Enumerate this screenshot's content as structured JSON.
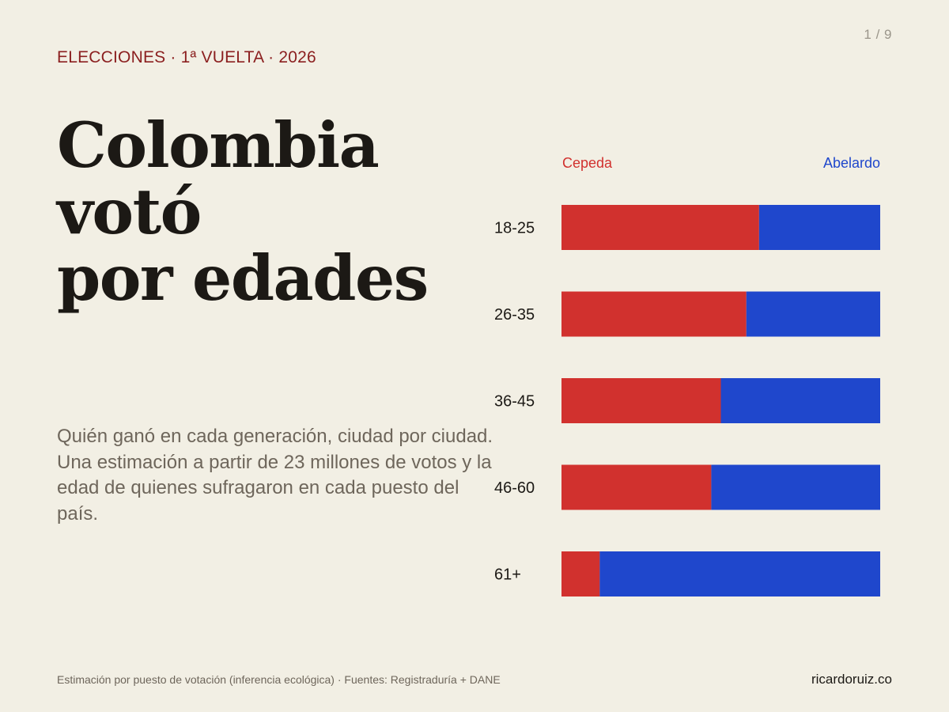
{
  "page": {
    "counter": "1 / 9",
    "kicker": "ELECCIONES · 1ª VUELTA · 2026",
    "headline_line1": "Colombia votó",
    "headline_line2": "por edades",
    "subtitle": "Quién ganó en cada generación, ciudad por ciudad. Una estimación a partir de 23 millones de votos y la edad de quienes sufragaron en cada puesto del país.",
    "footer_source": "Estimación por puesto de votación (inferencia ecológica) · Fuentes: Registraduría + DANE",
    "footer_site": "ricardoruiz.co"
  },
  "chart_data": {
    "type": "bar",
    "stacked": true,
    "orientation": "horizontal",
    "unit": "share",
    "xlim": [
      0,
      100
    ],
    "grid": false,
    "legend_placement": "top",
    "categories": [
      "18-25",
      "26-35",
      "36-45",
      "46-60",
      "61+"
    ],
    "series": [
      {
        "name": "Cepeda",
        "color": "#d1312e",
        "values": [
          62,
          58,
          50,
          47,
          12
        ]
      },
      {
        "name": "Abelardo",
        "color": "#1f47cc",
        "values": [
          38,
          42,
          50,
          53,
          88
        ]
      }
    ]
  }
}
